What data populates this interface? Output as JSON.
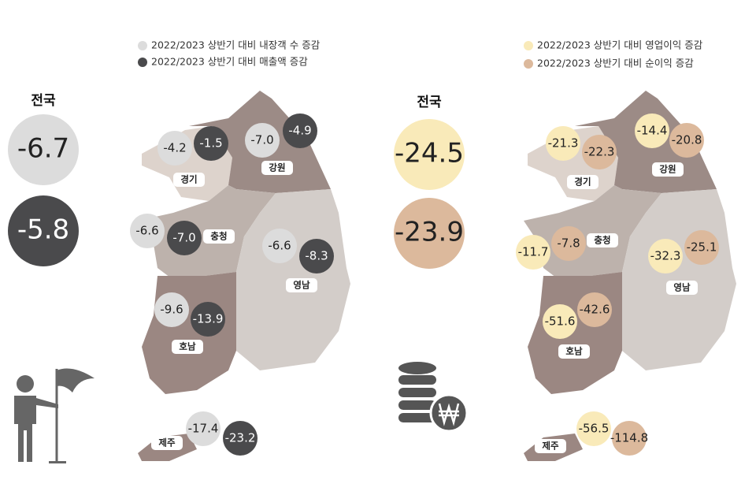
{
  "left": {
    "legend": [
      "2022/2023 상반기 대비 내장객 수 증감",
      "2022/2023 상반기 대비 매출액 증감"
    ],
    "national": {
      "label": "전국",
      "values": [
        "-6.7",
        "-5.8"
      ]
    },
    "regions": [
      {
        "name": "경기",
        "values": [
          "-4.2",
          "-1.5"
        ]
      },
      {
        "name": "강원",
        "values": [
          "-7.0",
          "-4.9"
        ]
      },
      {
        "name": "충청",
        "values": [
          "-6.6",
          "-7.0"
        ]
      },
      {
        "name": "영남",
        "values": [
          "-6.6",
          "-8.3"
        ]
      },
      {
        "name": "호남",
        "values": [
          "-9.6",
          "-13.9"
        ]
      },
      {
        "name": "제주",
        "values": [
          "-17.4",
          "-23.2"
        ]
      }
    ]
  },
  "right": {
    "legend": [
      "2022/2023 상반기 대비 영업이익 증감",
      "2022/2023 상반기 대비 순이익 증감"
    ],
    "national": {
      "label": "전국",
      "values": [
        "-24.5",
        "-23.9"
      ]
    },
    "regions": [
      {
        "name": "경기",
        "values": [
          "-21.3",
          "-22.3"
        ]
      },
      {
        "name": "강원",
        "values": [
          "-14.4",
          "-20.8"
        ]
      },
      {
        "name": "충청",
        "values": [
          "-11.7",
          "-7.8"
        ]
      },
      {
        "name": "영남",
        "values": [
          "-32.3",
          "-25.1"
        ]
      },
      {
        "name": "호남",
        "values": [
          "-51.6",
          "-42.6"
        ]
      },
      {
        "name": "제주",
        "values": [
          "-56.5",
          "-114.8"
        ]
      }
    ]
  }
}
